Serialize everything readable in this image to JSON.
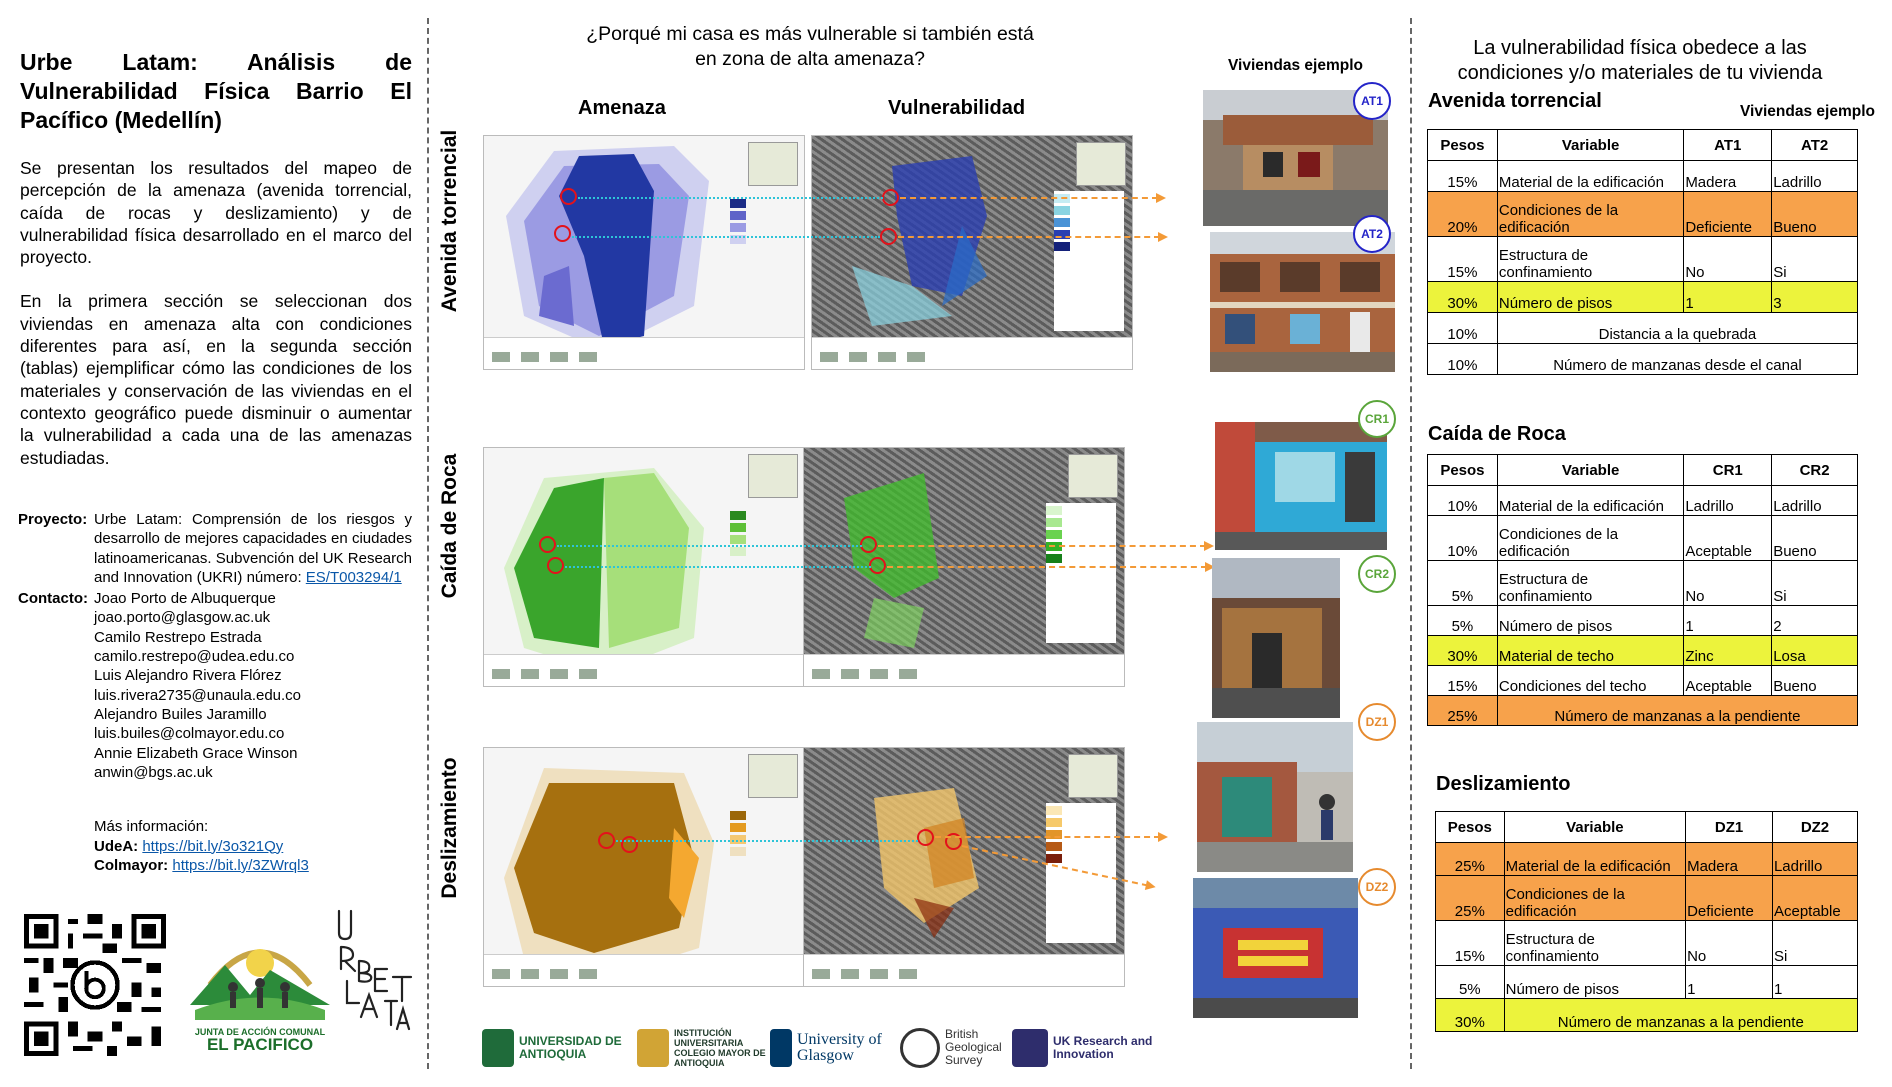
{
  "left": {
    "title": "Urbe Latam: Análisis de Vulnerabilidad Física Barrio El Pacífico (Medellín)",
    "intro1": "Se presentan los resultados del mapeo de percepción de la amenaza (avenida torrencial, caída de rocas y deslizamiento) y de vulnerabilidad física desarrollado en el marco del proyecto.",
    "intro2": "En la primera sección se seleccionan dos viviendas en amenaza alta con condiciones diferentes para así, en la segunda sección (tablas) ejemplificar cómo las condiciones de los materiales y conservación de las viviendas en el contexto geográfico puede disminuir o aumentar la vulnerabilidad a cada una de las amenazas estudiadas.",
    "project_label": "Proyecto:",
    "project_text": "Urbe Latam: Comprensión de los riesgos y desarrollo de mejores capacidades en ciudades latinoamericanas. Subvención del UK Research and Innovation (UKRI) número:",
    "project_link": "ES/T003294/1",
    "contact_label": "Contacto:",
    "contacts": [
      "Joao Porto de Albuquerque",
      "joao.porto@glasgow.ac.uk",
      "Camilo Restrepo Estrada",
      "camilo.restrepo@udea.edu.co",
      "Luis Alejandro Rivera Flórez",
      "luis.rivera2735@unaula.edu.co",
      "Alejandro Builes Jaramillo",
      "luis.builes@colmayor.edu.co",
      "Annie Elizabeth Grace Winson",
      "anwin@bgs.ac.uk"
    ],
    "more_info": "Más información:",
    "udea_label": "UdeA:",
    "udea_link": "https://bit.ly/3o321Qy",
    "colmayor_label": "Colmayor:",
    "colmayor_link": "https://bit.ly/3ZWrql3",
    "jac_line1": "JUNTA DE ACCIÓN COMUNAL",
    "jac_line2": "EL PACIFICO",
    "urbe_logo_text": "URBE LATAM"
  },
  "middle": {
    "title": "¿Porqué mi casa es más vulnerable si también está en zona de alta amenaza?",
    "col_amenaza": "Amenaza",
    "col_vulnerabilidad": "Vulnerabilidad",
    "viviendas_ejemplo": "Viviendas ejemplo",
    "row_labels": [
      "Avenida torrencial",
      "Caída de Roca",
      "Deslizamiento"
    ],
    "badges": [
      "AT1",
      "AT2",
      "CR1",
      "CR2",
      "DZ1",
      "DZ2"
    ],
    "logos": [
      {
        "name": "UNIVERSIDAD DE ANTIOQUIA",
        "color": "#1f6b3a"
      },
      {
        "name": "INSTITUCIÓN UNIVERSITARIA COLEGIO MAYOR DE ANTIOQUIA",
        "color": "#1f6b3a"
      },
      {
        "name": "University of Glasgow",
        "color": "#003865"
      },
      {
        "name": "British Geological Survey",
        "color": "#333333"
      },
      {
        "name": "UK Research and Innovation",
        "color": "#2e2d6c"
      }
    ]
  },
  "colors": {
    "avenida": "#2638a7",
    "roca": "#3fb024",
    "deslizamiento": "#a9700e",
    "orange_row": "#f7a24b",
    "yellow_row": "#ecf33c",
    "badge_blue": "#2424c8",
    "badge_green": "#5aa53a",
    "badge_orange": "#e68a2e"
  },
  "right": {
    "title": "La vulnerabilidad física obedece a las condiciones y/o materiales de tu vivienda",
    "viviendas_ejemplo": "Viviendas ejemplo",
    "headers": {
      "pesos": "Pesos",
      "variable": "Variable"
    },
    "avenida": {
      "title": "Avenida torrencial",
      "cols": [
        "AT1",
        "AT2"
      ],
      "rows": [
        {
          "peso": "15%",
          "variable": "Material de la edificación",
          "a": "Madera",
          "b": "Ladrillo",
          "hl": ""
        },
        {
          "peso": "20%",
          "variable": "Condiciones de la edificación",
          "a": "Deficiente",
          "b": "Bueno",
          "hl": "orange"
        },
        {
          "peso": "15%",
          "variable": "Estructura de confinamiento",
          "a": "No",
          "b": "Si",
          "hl": ""
        },
        {
          "peso": "30%",
          "variable": "Número de pisos",
          "a": "1",
          "b": "3",
          "hl": "yellow"
        },
        {
          "peso": "10%",
          "variable": "Distancia a la quebrada",
          "span": true,
          "hl": ""
        },
        {
          "peso": "10%",
          "variable": "Número de manzanas desde el canal",
          "span": true,
          "hl": ""
        }
      ]
    },
    "roca": {
      "title": "Caída de Roca",
      "cols": [
        "CR1",
        "CR2"
      ],
      "rows": [
        {
          "peso": "10%",
          "variable": "Material de la edificación",
          "a": "Ladrillo",
          "b": "Ladrillo",
          "hl": ""
        },
        {
          "peso": "10%",
          "variable": "Condiciones de la edificación",
          "a": "Aceptable",
          "b": "Bueno",
          "hl": ""
        },
        {
          "peso": "5%",
          "variable": "Estructura de confinamiento",
          "a": "No",
          "b": "Si",
          "hl": ""
        },
        {
          "peso": "5%",
          "variable": "Número de pisos",
          "a": "1",
          "b": "2",
          "hl": ""
        },
        {
          "peso": "30%",
          "variable": "Material de techo",
          "a": "Zinc",
          "b": "Losa",
          "hl": "yellow"
        },
        {
          "peso": "15%",
          "variable": "Condiciones del techo",
          "a": "Aceptable",
          "b": "Bueno",
          "hl": ""
        },
        {
          "peso": "25%",
          "variable": "Número de manzanas a la pendiente",
          "span": true,
          "hl": "orange"
        }
      ]
    },
    "deslizamiento": {
      "title": "Deslizamiento",
      "cols": [
        "DZ1",
        "DZ2"
      ],
      "rows": [
        {
          "peso": "25%",
          "variable": "Material de la edificación",
          "a": "Madera",
          "b": "Ladrillo",
          "hl": "orange"
        },
        {
          "peso": "25%",
          "variable": "Condiciones de la edificación",
          "a": "Deficiente",
          "b": "Aceptable",
          "hl": "orange"
        },
        {
          "peso": "15%",
          "variable": "Estructura de confinamiento",
          "a": "No",
          "b": "Si",
          "hl": ""
        },
        {
          "peso": "5%",
          "variable": "Número de pisos",
          "a": "1",
          "b": "1",
          "hl": ""
        },
        {
          "peso": "30%",
          "variable": "Número de manzanas a la pendiente",
          "span": true,
          "hl": "yellow"
        }
      ]
    }
  }
}
